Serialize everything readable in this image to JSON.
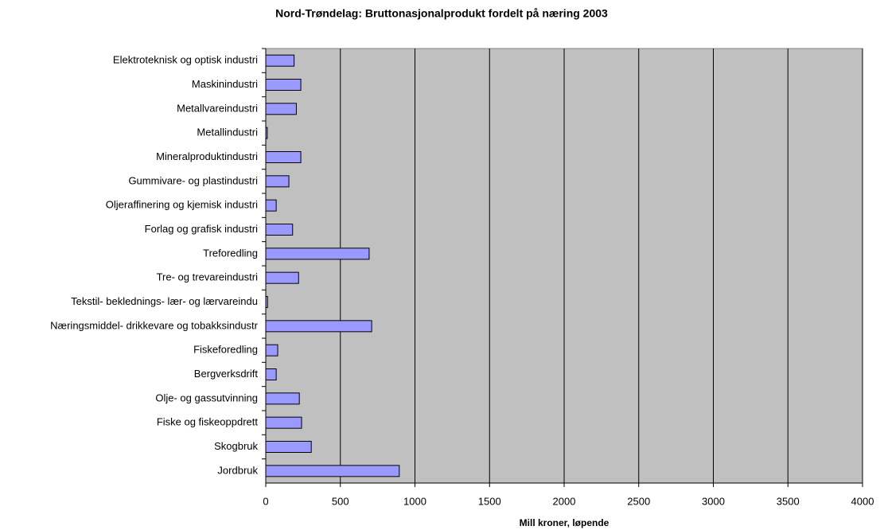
{
  "chart_data": {
    "type": "bar",
    "orientation": "horizontal",
    "title": "Nord-Trøndelag: Bruttonasjonalprodukt fordelt på næring 2003",
    "x_label": "Mill kroner, løpende",
    "categories": [
      "Elektroteknisk og optisk industri",
      "Maskinindustri",
      "Metallvareindustri",
      "Metallindustri",
      "Mineralproduktindustri",
      "Gummivare- og plastindustri",
      "Oljeraffinering og kjemisk industri",
      "Forlag og grafisk industri",
      "Treforedling",
      "Tre- og trevareindustri",
      "Tekstil- beklednings- lær- og lærvareindu",
      "Næringsmiddel- drikkevare og tobakksindustr",
      "Fiskeforedling",
      "Bergverksdrift",
      "Olje- og gassutvinning",
      "Fiske og fiskeoppdrett",
      "Skogbruk",
      "Jordbruk"
    ],
    "values": [
      190,
      235,
      205,
      10,
      235,
      155,
      70,
      180,
      693,
      220,
      12,
      710,
      80,
      70,
      225,
      240,
      305,
      895
    ],
    "color": "#9999ff",
    "plot_background": "#c0c0c0",
    "xlim": [
      0,
      4000
    ],
    "xticks": [
      0,
      500,
      1000,
      1500,
      2000,
      2500,
      3000,
      3500,
      4000
    ],
    "grid": true
  }
}
